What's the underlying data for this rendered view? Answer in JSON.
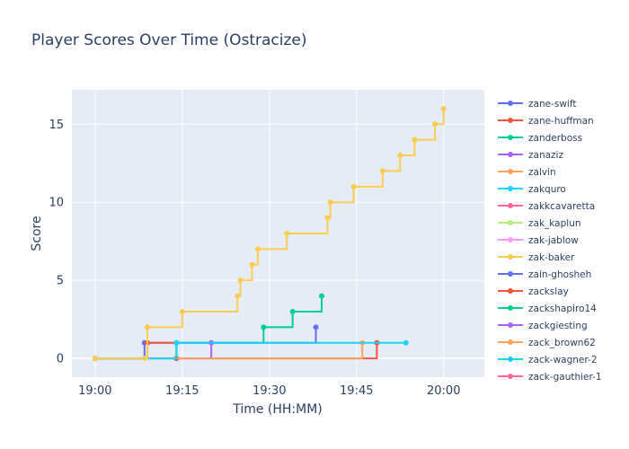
{
  "chart_data": {
    "type": "line",
    "line_shape": "step",
    "title": "Player Scores Over Time (Ostracize)",
    "xlabel": "Time (HH:MM)",
    "ylabel": "Score",
    "xlim": [
      "18:56",
      "20:07"
    ],
    "ylim": [
      -1.2,
      17.2
    ],
    "x_ticks": [
      "19:00",
      "19:15",
      "19:30",
      "19:45",
      "20:00"
    ],
    "y_ticks": [
      0,
      5,
      10,
      15
    ],
    "grid": true,
    "legend_position": "right",
    "colors": {
      "plot_bg": "#e5ecf6",
      "grid": "#ffffff",
      "text": "#2a3f5f"
    },
    "series": [
      {
        "name": "zane-swift",
        "color": "#636efa",
        "points": [
          [
            "19:00",
            0
          ],
          [
            "19:08.5",
            1
          ],
          [
            "19:38",
            2
          ]
        ]
      },
      {
        "name": "zane-huffman",
        "color": "#ef553b",
        "points": [
          [
            "19:00",
            0
          ],
          [
            "19:09",
            1
          ],
          [
            "19:14",
            0
          ],
          [
            "19:48.5",
            1
          ]
        ]
      },
      {
        "name": "zanderboss",
        "color": "#00cc96",
        "points": [
          [
            "19:00",
            0
          ],
          [
            "19:14",
            1
          ],
          [
            "19:29",
            2
          ],
          [
            "19:34",
            3
          ],
          [
            "19:39",
            4
          ]
        ]
      },
      {
        "name": "zanaziz",
        "color": "#ab63fa",
        "points": [
          [
            "19:00",
            0
          ],
          [
            "19:20",
            1
          ]
        ]
      },
      {
        "name": "zalvin",
        "color": "#ffa15a",
        "points": [
          [
            "19:00",
            0
          ],
          [
            "19:46",
            1
          ]
        ]
      },
      {
        "name": "zakquro",
        "color": "#19d3f3",
        "points": [
          [
            "19:00",
            0
          ],
          [
            "19:14",
            1
          ],
          [
            "19:53.5",
            1
          ]
        ]
      },
      {
        "name": "zakkcavaretta",
        "color": "#ff6692",
        "points": [
          [
            "19:00",
            0
          ]
        ]
      },
      {
        "name": "zak_kaplun",
        "color": "#b6e880",
        "points": [
          [
            "19:00",
            0
          ]
        ]
      },
      {
        "name": "zak-jablow",
        "color": "#ff97ff",
        "points": [
          [
            "19:00",
            0
          ]
        ]
      },
      {
        "name": "zak-baker",
        "color": "#fecb52",
        "points": [
          [
            "19:00",
            0
          ],
          [
            "19:08.5",
            0
          ],
          [
            "19:09",
            2
          ],
          [
            "19:15",
            3
          ],
          [
            "19:24.5",
            4
          ],
          [
            "19:25",
            5
          ],
          [
            "19:27",
            6
          ],
          [
            "19:28",
            7
          ],
          [
            "19:33",
            8
          ],
          [
            "19:40",
            9
          ],
          [
            "19:40.5",
            10
          ],
          [
            "19:44.5",
            11
          ],
          [
            "19:49.5",
            12
          ],
          [
            "19:52.5",
            13
          ],
          [
            "19:55",
            14
          ],
          [
            "19:58.5",
            15
          ],
          [
            "20:00",
            16
          ]
        ]
      },
      {
        "name": "zain-ghosheh",
        "color": "#636efa",
        "points": []
      },
      {
        "name": "zackslay",
        "color": "#ef553b",
        "points": []
      },
      {
        "name": "zackshapiro14",
        "color": "#00cc96",
        "points": []
      },
      {
        "name": "zackgiesting",
        "color": "#ab63fa",
        "points": []
      },
      {
        "name": "zack_brown62",
        "color": "#ffa15a",
        "points": []
      },
      {
        "name": "zack-wagner-2",
        "color": "#19d3f3",
        "points": []
      },
      {
        "name": "zack-gauthier-1",
        "color": "#ff6692",
        "points": []
      }
    ]
  }
}
